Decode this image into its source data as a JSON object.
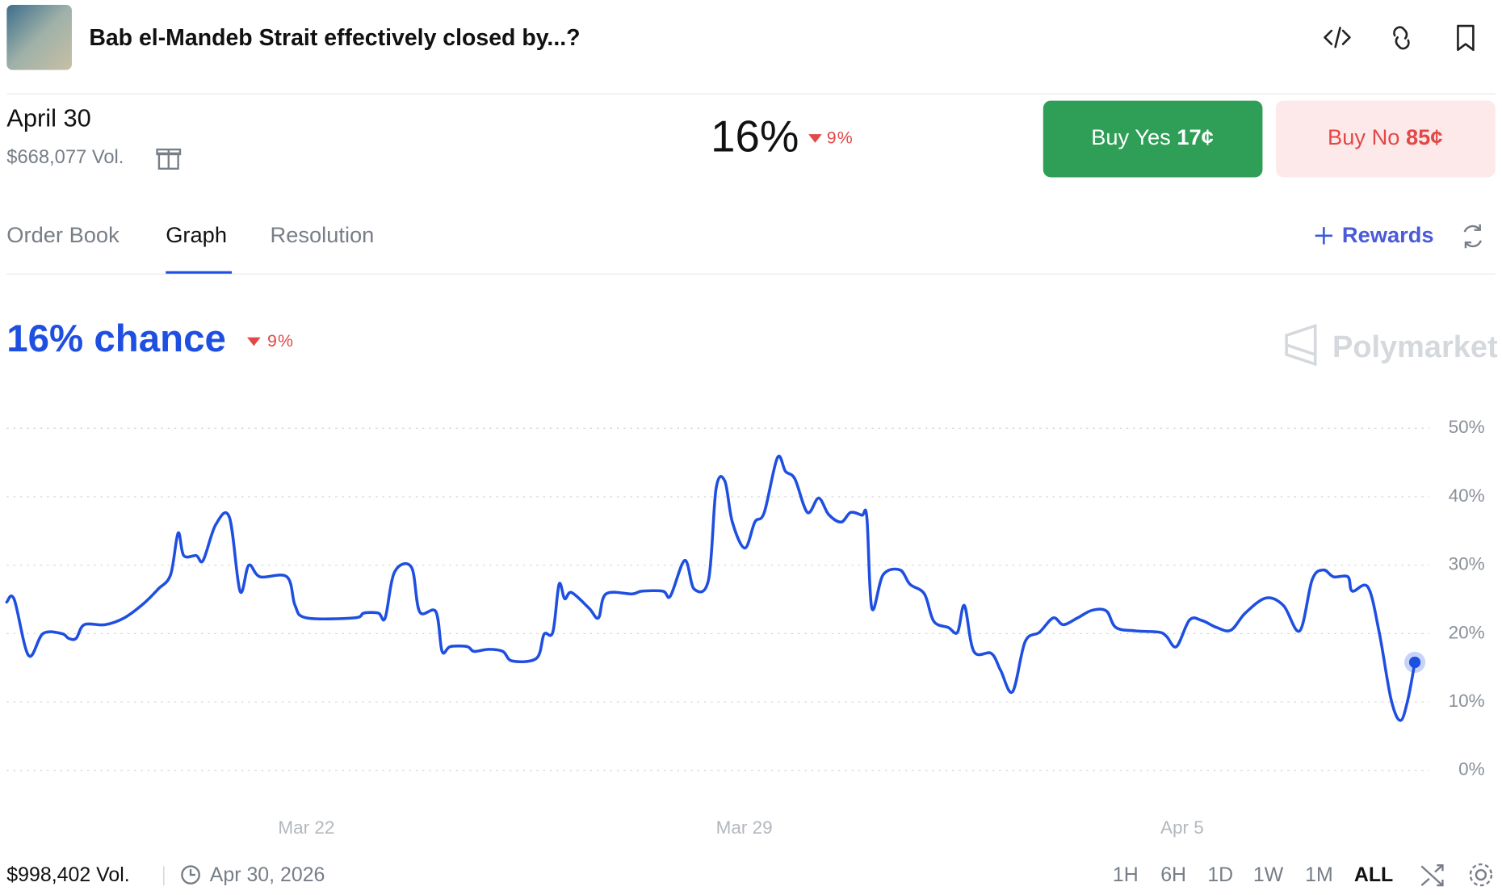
{
  "header": {
    "title": "Bab el-Mandeb Strait effectively closed by...?"
  },
  "market": {
    "label": "April 30",
    "volume": "$668,077 Vol.",
    "price": "16%",
    "change": "9%",
    "buy_yes": {
      "label": "Buy Yes",
      "price": "17¢"
    },
    "buy_no": {
      "label": "Buy No",
      "price": "85¢"
    }
  },
  "tabs": [
    "Order Book",
    "Graph",
    "Resolution"
  ],
  "rewards": "Rewards",
  "brand": "Polymarket",
  "chart_data": {
    "type": "line",
    "title": "16% chance",
    "change": "9%",
    "color": "#1f4fe0",
    "x": [
      -4.79,
      -4.67,
      -4.44,
      -4.21,
      -3.91,
      -3.8,
      -3.68,
      -3.55,
      -3.22,
      -2.91,
      -2.6,
      -2.37,
      -2.17,
      -2.05,
      -1.96,
      -1.76,
      -1.65,
      -1.45,
      -1.23,
      -1.06,
      -0.92,
      -0.74,
      -0.31,
      -0.18,
      0,
      0.77,
      0.92,
      1.15,
      1.26,
      1.41,
      1.68,
      1.81,
      2.07,
      2.17,
      2.3,
      2.57,
      2.68,
      2.91,
      3.14,
      3.29,
      3.68,
      3.8,
      3.94,
      4.04,
      4.13,
      4.24,
      4.52,
      4.67,
      4.79,
      5.21,
      5.36,
      5.7,
      5.82,
      6.05,
      6.2,
      6.43,
      6.55,
      6.69,
      6.81,
      7.01,
      7.17,
      7.32,
      7.53,
      7.66,
      7.81,
      8.01,
      8.19,
      8.35,
      8.55,
      8.7,
      8.88,
      8.96,
      9.04,
      9.22,
      9.49,
      9.65,
      9.88,
      10.03,
      10.26,
      10.41,
      10.52,
      10.67,
      10.95,
      11.1,
      11.29,
      11.49,
      11.72,
      11.94,
      12.1,
      12.33,
      12.56,
      12.79,
      12.94,
      13.25,
      13.63,
      13.75,
      13.91,
      14.12,
      14.32,
      14.55,
      14.78,
      15.01,
      15.34,
      15.62,
      15.88,
      16.08,
      16.26,
      16.42,
      16.65,
      16.72,
      16.97,
      17.15,
      17.34,
      17.49,
      17.61,
      17.72
    ],
    "values": [
      24.6,
      25,
      16.8,
      20,
      20,
      19.3,
      19.3,
      21.3,
      21.3,
      22.3,
      24.4,
      26.5,
      28.6,
      34.7,
      31.4,
      31.4,
      30.7,
      35.9,
      37,
      26.2,
      30,
      28.3,
      28.3,
      24.1,
      22.3,
      22.3,
      23,
      23,
      22.3,
      29,
      29.7,
      23.2,
      23.2,
      17.4,
      18.1,
      18.1,
      17.4,
      17.7,
      17.4,
      16,
      16.4,
      19.9,
      20.2,
      27.2,
      25.1,
      26,
      23.7,
      22.3,
      25.8,
      25.8,
      26.2,
      26.2,
      25.5,
      30.7,
      26.5,
      27.9,
      41.2,
      42.3,
      36.3,
      32.5,
      36.3,
      37.7,
      45.7,
      43.7,
      42.6,
      37.7,
      39.8,
      37.4,
      36.3,
      37.7,
      37.3,
      37,
      23.7,
      28.6,
      29.3,
      27.2,
      25.8,
      21.8,
      20.9,
      20.2,
      24.1,
      17.4,
      17.1,
      14.6,
      11.5,
      18.8,
      20.2,
      22.3,
      21.3,
      22.3,
      23.4,
      23.3,
      20.9,
      20.4,
      20.2,
      19.6,
      18.1,
      22,
      21.9,
      20.9,
      20.5,
      23,
      25.2,
      24.1,
      20.4,
      27.9,
      29.3,
      28.3,
      28.3,
      26.2,
      26.8,
      20.2,
      10.4,
      7.3,
      10.4,
      15.8
    ],
    "xlim": [
      -4.79,
      17.72
    ],
    "xticks": [
      {
        "value": 0,
        "label": "Mar 22"
      },
      {
        "value": 7,
        "label": "Mar 29"
      },
      {
        "value": 14,
        "label": "Apr 5"
      }
    ],
    "ylim": [
      0,
      50
    ],
    "yticks": [
      {
        "value": 0,
        "label": "0%"
      },
      {
        "value": 10,
        "label": "10%"
      },
      {
        "value": 20,
        "label": "20%"
      },
      {
        "value": 30,
        "label": "30%"
      },
      {
        "value": 40,
        "label": "40%"
      },
      {
        "value": 50,
        "label": "50%"
      }
    ],
    "grid": true
  },
  "footer": {
    "volume": "$998,402 Vol.",
    "end_date": "Apr 30, 2026",
    "ranges": [
      "1H",
      "6H",
      "1D",
      "1W",
      "1M",
      "ALL"
    ]
  }
}
